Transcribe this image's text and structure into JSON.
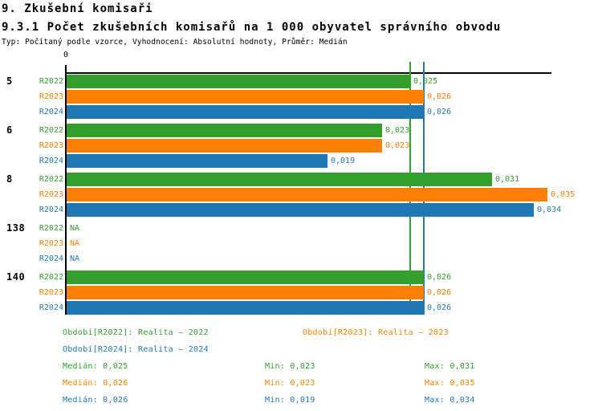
{
  "page": {
    "title": "9. Zkušební komisaři",
    "subtitle": "9.3.1 Počet zkušebních komisařů na 1 000 obyvatel správního obvodu",
    "meta": "Typ: Počítaný podle vzorce, Vyhodnocení: Absolutní hodnoty, Průměr: Medián"
  },
  "colors": {
    "r2022": "#33A02C",
    "r2023": "#FF7F00",
    "r2024": "#1F78B4",
    "axis": "#000000"
  },
  "chart_data": {
    "type": "bar",
    "orientation": "horizontal",
    "title": "9.3.1 Počet zkušebních komisařů na 1 000 obyvatel správního obvodu",
    "axis_origin_label": "0",
    "xlim": [
      0,
      0.035
    ],
    "grid": false,
    "series_names": [
      "R2022",
      "R2023",
      "R2024"
    ],
    "groups": [
      {
        "label": "5",
        "values": [
          0.025,
          0.026,
          0.026
        ],
        "value_labels": [
          "0,025",
          "0,026",
          "0,026"
        ]
      },
      {
        "label": "6",
        "values": [
          0.023,
          0.023,
          0.019
        ],
        "value_labels": [
          "0,023",
          "0,023",
          "0,019"
        ]
      },
      {
        "label": "8",
        "values": [
          0.031,
          0.035,
          0.034
        ],
        "value_labels": [
          "0,031",
          "0,035",
          "0,034"
        ]
      },
      {
        "label": "138",
        "values": [
          null,
          null,
          null
        ],
        "value_labels": [
          "NA",
          "NA",
          "NA"
        ]
      },
      {
        "label": "140",
        "values": [
          0.026,
          0.026,
          0.026
        ],
        "value_labels": [
          "0,026",
          "0,026",
          "0,026"
        ]
      }
    ],
    "median_lines": [
      {
        "series": "R2023",
        "value": 0.026
      },
      {
        "series": "R2024",
        "value": 0.026
      },
      {
        "series": "R2022",
        "value": 0.025
      }
    ],
    "legend": [
      {
        "series": "R2022",
        "label": "Období[R2022]: Realita – 2022"
      },
      {
        "series": "R2023",
        "label": "Období[R2023]: Realita – 2023"
      },
      {
        "series": "R2024",
        "label": "Období[R2024]: Realita – 2024"
      }
    ],
    "stats": [
      {
        "series": "R2022",
        "median_label": "Medián: 0,025",
        "min_label": "Min: 0,023",
        "max_label": "Max: 0,031"
      },
      {
        "series": "R2023",
        "median_label": "Medián: 0,026",
        "min_label": "Min: 0,023",
        "max_label": "Max: 0,035"
      },
      {
        "series": "R2024",
        "median_label": "Medián: 0,026",
        "min_label": "Min: 0,019",
        "max_label": "Max: 0,034"
      }
    ]
  }
}
